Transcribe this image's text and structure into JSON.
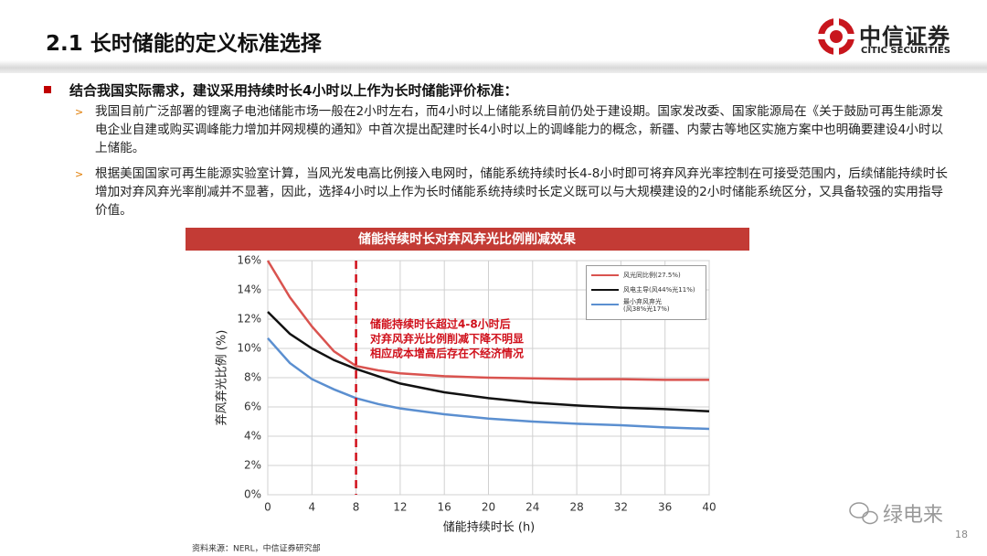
{
  "header": {
    "title": "2.1 长时储能的定义标准选择",
    "logo_cn": "中信证券",
    "logo_en": "CITIC SECURITIES"
  },
  "bullets": {
    "main": "结合我国实际需求，建议采用持续时长4小时以上作为长时储能评价标准：",
    "items": [
      "我国目前广泛部署的锂离子电池储能市场一般在2小时左右，而4小时以上储能系统目前仍处于建设期。国家发改委、国家能源局在《关于鼓励可再生能源发电企业自建或购买调峰能力增加并网规模的通知》中首次提出配建时长4小时以上的调峰能力的概念，新疆、内蒙古等地区实施方案中也明确要建设4小时以上储能。",
      "根据美国国家可再生能源实验室计算，当风光发电高比例接入电网时，储能系统持续时长4-8小时即可将弃风弃光率控制在可接受范围内，后续储能持续时长增加对弃风弃光率削减并不显著，因此，选择4小时以上作为长时储能系统持续时长定义既可以与大规模建设的2小时储能系统区分，又具备较强的实用指导价值。"
    ]
  },
  "chart_data": {
    "type": "line",
    "title": "储能持续时长对弃风弃光比例削减效果",
    "xlabel": "储能持续时长 (h)",
    "ylabel": "弃风弃光比例 (%)",
    "x": [
      0,
      2,
      4,
      6,
      8,
      10,
      12,
      16,
      20,
      24,
      28,
      32,
      36,
      40
    ],
    "series": [
      {
        "name": "风光同比例(27.5%)",
        "color": "#d9534f",
        "values": [
          16,
          13.5,
          11.5,
          9.8,
          8.8,
          8.5,
          8.3,
          8.1,
          8.0,
          7.95,
          7.9,
          7.9,
          7.85,
          7.85
        ]
      },
      {
        "name": "风电主导(风44%光11%)",
        "color": "#111111",
        "values": [
          12.5,
          11.0,
          10.0,
          9.2,
          8.6,
          8.1,
          7.6,
          7.0,
          6.6,
          6.3,
          6.1,
          5.95,
          5.85,
          5.7
        ]
      },
      {
        "name": "最小弃风弃光\n(风38%光17%)",
        "color": "#5b8fd0",
        "values": [
          10.7,
          9.0,
          7.9,
          7.2,
          6.6,
          6.2,
          5.9,
          5.5,
          5.2,
          5.0,
          4.85,
          4.75,
          4.6,
          4.5
        ]
      }
    ],
    "xlim": [
      0,
      40
    ],
    "ylim": [
      0,
      16
    ],
    "xticks": [
      0,
      4,
      8,
      12,
      16,
      20,
      24,
      28,
      32,
      36,
      40
    ],
    "yticks": [
      {
        "value": 0,
        "label": "0%"
      },
      {
        "value": 2,
        "label": "2%"
      },
      {
        "value": 4,
        "label": "4%"
      },
      {
        "value": 6,
        "label": "6%"
      },
      {
        "value": 8,
        "label": "8%"
      },
      {
        "value": 10,
        "label": "10%"
      },
      {
        "value": 12,
        "label": "12%"
      },
      {
        "value": 14,
        "label": "14%"
      },
      {
        "value": 16,
        "label": "16%"
      }
    ],
    "grid": true,
    "reference_line_x": 8,
    "reference_color": "#d0101b",
    "annotations": [
      "储能持续时长超过4-8小时后",
      "对弃风弃光比例削减下降不明显",
      "相应成本增高后存在不经济情况"
    ]
  },
  "source": "资料来源：NERL，中信证券研究部",
  "page_number": "18",
  "watermark": "绿电来"
}
